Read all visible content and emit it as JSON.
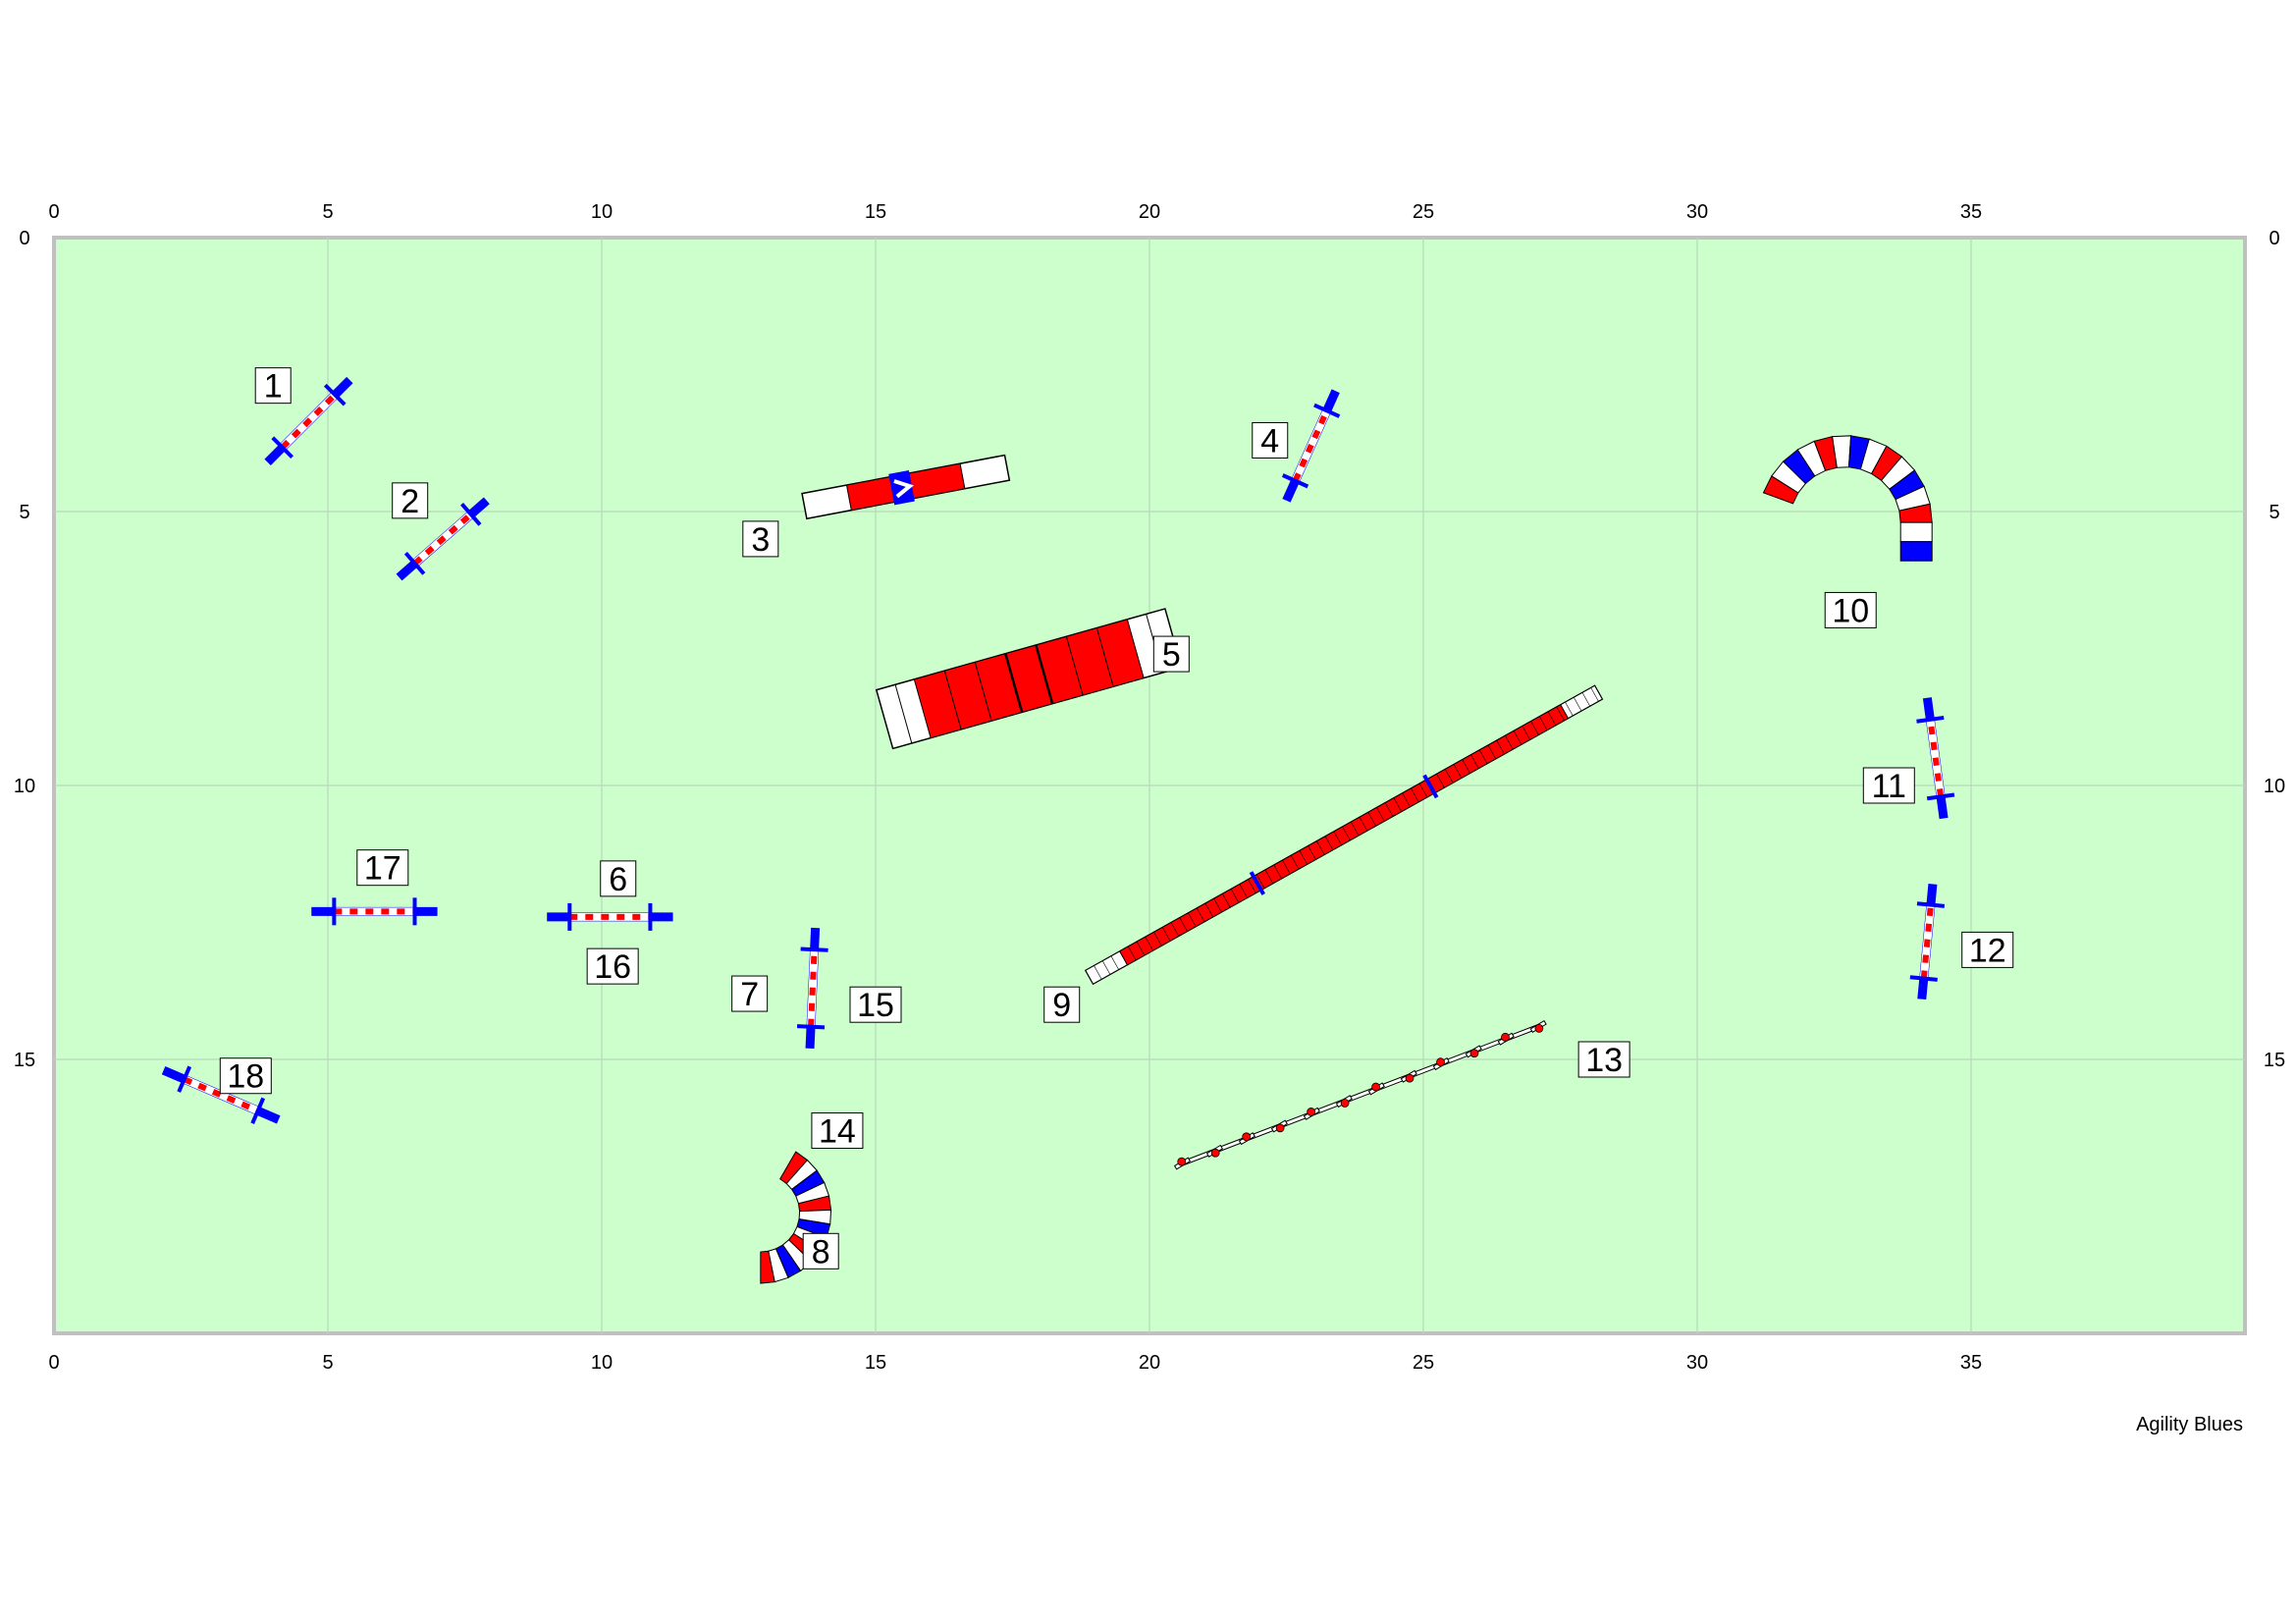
{
  "course": {
    "width_m": 40,
    "height_m": 20,
    "x_ticks": [
      "0",
      "5",
      "10",
      "15",
      "20",
      "25",
      "30",
      "35"
    ],
    "y_ticks": [
      "0",
      "5",
      "10",
      "15"
    ],
    "grid": true,
    "colors": {
      "field": "#ccffcc",
      "border": "#c0c0c0",
      "grid": "#b8d8b8",
      "red": "#ff0000",
      "blue": "#0000ff",
      "white": "#ffffff"
    }
  },
  "credit": "Agility Blues",
  "obstacles": [
    {
      "label": "1",
      "type": "jump",
      "x1": 3.9,
      "y1": 4.1,
      "x2": 5.4,
      "y2": 2.6,
      "lx": 4.0,
      "ly": 2.7
    },
    {
      "label": "2",
      "type": "jump",
      "x1": 6.3,
      "y1": 6.2,
      "x2": 7.9,
      "y2": 4.8,
      "lx": 6.5,
      "ly": 4.8
    },
    {
      "label": "3",
      "type": "tire-bar",
      "x1": 13.7,
      "y1": 4.9,
      "x2": 17.4,
      "y2": 4.2,
      "lx": 12.9,
      "ly": 5.5
    },
    {
      "label": "4",
      "type": "jump",
      "x1": 22.5,
      "y1": 4.8,
      "x2": 23.4,
      "y2": 2.8,
      "lx": 22.2,
      "ly": 3.7
    },
    {
      "label": "5",
      "type": "walk",
      "x1": 16.2,
      "y1": 8.5,
      "x2": 19.4,
      "y2": 7.6,
      "lx": 20.4,
      "ly": 7.6
    },
    {
      "label": "6",
      "type": "jump",
      "x1": 9.0,
      "y1": 12.4,
      "x2": 11.3,
      "y2": 12.4,
      "lx": 10.3,
      "ly": 11.7
    },
    {
      "label": "7",
      "type": "jump",
      "x1": 13.8,
      "y1": 14.8,
      "x2": 13.9,
      "y2": 12.6,
      "lx": 12.7,
      "ly": 13.8
    },
    {
      "label": "8",
      "type": "tunnel",
      "lx": 14.0,
      "ly": 18.5
    },
    {
      "label": "9",
      "type": "dogwalk",
      "x1": 18.9,
      "y1": 13.5,
      "x2": 28.2,
      "y2": 8.3,
      "lx": 18.4,
      "ly": 14.0
    },
    {
      "label": "10",
      "type": "tunnel",
      "lx": 32.8,
      "ly": 6.8
    },
    {
      "label": "11",
      "type": "jump",
      "x1": 34.5,
      "y1": 10.6,
      "x2": 34.2,
      "y2": 8.4,
      "lx": 33.5,
      "ly": 10.0
    },
    {
      "label": "12",
      "type": "jump",
      "x1": 34.1,
      "y1": 13.9,
      "x2": 34.3,
      "y2": 11.8,
      "lx": 35.3,
      "ly": 13.0
    },
    {
      "label": "13",
      "type": "weave",
      "x1": 20.6,
      "y1": 16.9,
      "x2": 27.1,
      "y2": 14.4,
      "lx": 28.3,
      "ly": 15.0
    },
    {
      "label": "14",
      "type": "tunnel",
      "lx": 14.3,
      "ly": 16.3
    },
    {
      "label": "15",
      "type": "jump",
      "lx": 15.0,
      "ly": 14.0
    },
    {
      "label": "16",
      "type": "jump",
      "lx": 10.2,
      "ly": 13.3
    },
    {
      "label": "17",
      "type": "jump",
      "x1": 4.7,
      "y1": 12.3,
      "x2": 7.0,
      "y2": 12.3,
      "lx": 6.0,
      "ly": 11.5
    },
    {
      "label": "18",
      "type": "jump",
      "x1": 2.0,
      "y1": 15.2,
      "x2": 4.1,
      "y2": 16.1,
      "lx": 3.5,
      "ly": 15.3
    }
  ],
  "tunnels": [
    {
      "label": "10",
      "cx": 32.7,
      "cy": 5.2,
      "r": 1.3,
      "start_deg": 200,
      "end_deg": 360,
      "straight": 0.7
    },
    {
      "label": "14",
      "cx": 12.9,
      "cy": 17.8,
      "r": 1.0,
      "start_deg": 300,
      "end_deg": 90,
      "straight": 0.0
    }
  ],
  "labels": [
    {
      "text": "1"
    },
    {
      "text": "2"
    },
    {
      "text": "3"
    },
    {
      "text": "4"
    },
    {
      "text": "5"
    },
    {
      "text": "6"
    },
    {
      "text": "7"
    },
    {
      "text": "8"
    },
    {
      "text": "9"
    },
    {
      "text": "10"
    },
    {
      "text": "11"
    },
    {
      "text": "12"
    },
    {
      "text": "13"
    },
    {
      "text": "14"
    },
    {
      "text": "15"
    },
    {
      "text": "16"
    },
    {
      "text": "17"
    },
    {
      "text": "18"
    }
  ]
}
